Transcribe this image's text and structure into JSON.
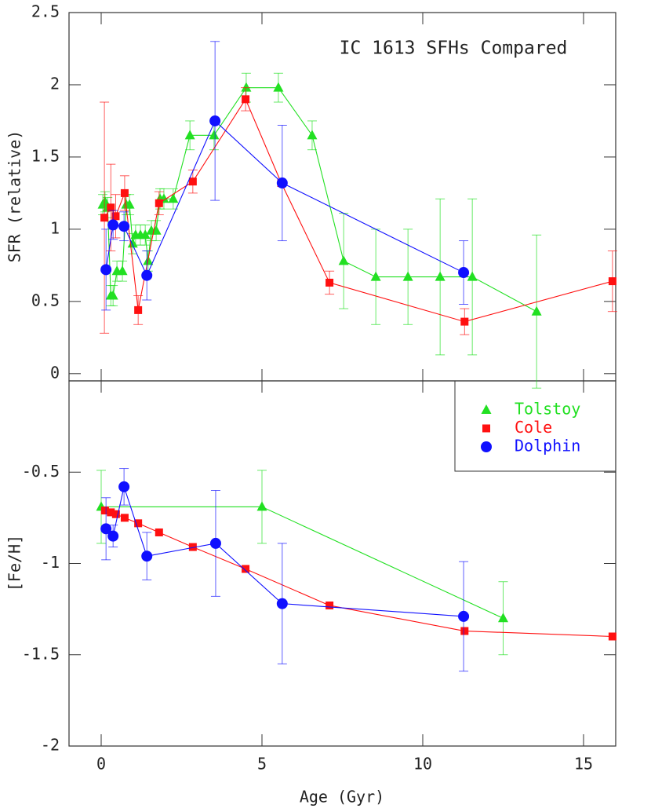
{
  "chart_data": [
    {
      "type": "line",
      "annotation": "IC 1613 SFHs Compared",
      "ylabel": "SFR (relative)",
      "xlim": [
        -1,
        16
      ],
      "xticks": [
        0,
        5,
        10,
        15
      ],
      "ylim": [
        -0.05,
        2.5
      ],
      "yticks": [
        0,
        0.5,
        1,
        1.5,
        2,
        2.5
      ],
      "series": [
        {
          "color": "#22e022",
          "marker": "triangle",
          "x": [
            0.05,
            0.12,
            0.2,
            0.3,
            0.37,
            0.49,
            0.66,
            0.78,
            0.88,
            0.98,
            1.07,
            1.22,
            1.37,
            1.46,
            1.56,
            1.71,
            1.83,
            1.95,
            2.24,
            2.76,
            3.51,
            4.51,
            5.51,
            6.56,
            7.54,
            8.54,
            9.54,
            10.54,
            11.54,
            13.54
          ],
          "values": [
            1.17,
            1.19,
            1.15,
            0.54,
            0.54,
            0.71,
            0.71,
            1.17,
            1.17,
            0.9,
            0.96,
            0.96,
            0.96,
            0.78,
            0.99,
            0.99,
            1.21,
            1.21,
            1.21,
            1.65,
            1.65,
            1.98,
            1.98,
            1.65,
            0.78,
            0.67,
            0.67,
            0.67,
            0.67,
            0.43
          ],
          "errors": [
            0.07,
            0.07,
            0.07,
            0.07,
            0.07,
            0.07,
            0.07,
            0.07,
            0.07,
            0.07,
            0.07,
            0.07,
            0.07,
            0.07,
            0.07,
            0.07,
            0.07,
            0.07,
            0.07,
            0.1,
            0.1,
            0.1,
            0.1,
            0.1,
            0.33,
            0.33,
            0.33,
            0.54,
            0.54,
            0.53
          ]
        },
        {
          "color": "#ff1010",
          "marker": "square",
          "x": [
            0.1,
            0.3,
            0.45,
            0.73,
            1.15,
            1.8,
            2.85,
            4.49,
            5.6,
            7.1,
            11.3,
            15.9
          ],
          "values": [
            1.08,
            1.15,
            1.09,
            1.25,
            0.44,
            1.18,
            1.33,
            1.9,
            1.32,
            0.63,
            0.36,
            0.64
          ],
          "errors": [
            0.8,
            0.3,
            0.15,
            0.12,
            0.1,
            0.08,
            0.08,
            0.08,
            null,
            0.08,
            0.09,
            0.21
          ]
        },
        {
          "color": "#1010ff",
          "marker": "circle",
          "x": [
            0.15,
            0.37,
            0.71,
            1.42,
            3.54,
            5.63,
            11.27
          ],
          "values": [
            0.72,
            1.03,
            1.02,
            0.68,
            1.75,
            1.32,
            0.7
          ],
          "errors": [
            0.28,
            0.1,
            0.1,
            0.17,
            0.55,
            0.4,
            0.22
          ]
        }
      ]
    },
    {
      "type": "line",
      "xlabel": "Age (Gyr)",
      "ylabel": "[Fe/H]",
      "legend": "upper right",
      "xlim": [
        -1,
        16
      ],
      "xticks": [
        0,
        5,
        10,
        15
      ],
      "ylim": [
        -2,
        0
      ],
      "yticks": [
        -2,
        -1.5,
        -1,
        -0.5
      ],
      "series": [
        {
          "name": "Tolstoy",
          "color": "#22e022",
          "marker": "triangle",
          "x": [
            0,
            5,
            12.5
          ],
          "values": [
            -0.69,
            -0.69,
            -1.3
          ],
          "errors": [
            0.2,
            0.2,
            0.2
          ]
        },
        {
          "name": "Cole",
          "color": "#ff1010",
          "marker": "square",
          "x": [
            0.12,
            0.3,
            0.46,
            0.73,
            1.15,
            1.8,
            2.85,
            4.49,
            7.1,
            11.3,
            15.9
          ],
          "values": [
            -0.71,
            -0.72,
            -0.73,
            -0.75,
            -0.78,
            -0.83,
            -0.91,
            -1.03,
            -1.23,
            -1.37,
            -1.4
          ]
        },
        {
          "name": "Dolphin",
          "color": "#1010ff",
          "marker": "circle",
          "x": [
            0.15,
            0.37,
            0.71,
            1.42,
            3.56,
            5.63,
            11.27
          ],
          "values": [
            -0.81,
            -0.85,
            -0.58,
            -0.96,
            -0.89,
            -1.22,
            -1.29
          ],
          "errors": [
            0.17,
            0.06,
            0.1,
            0.13,
            0.29,
            0.33,
            0.3
          ]
        }
      ]
    }
  ]
}
